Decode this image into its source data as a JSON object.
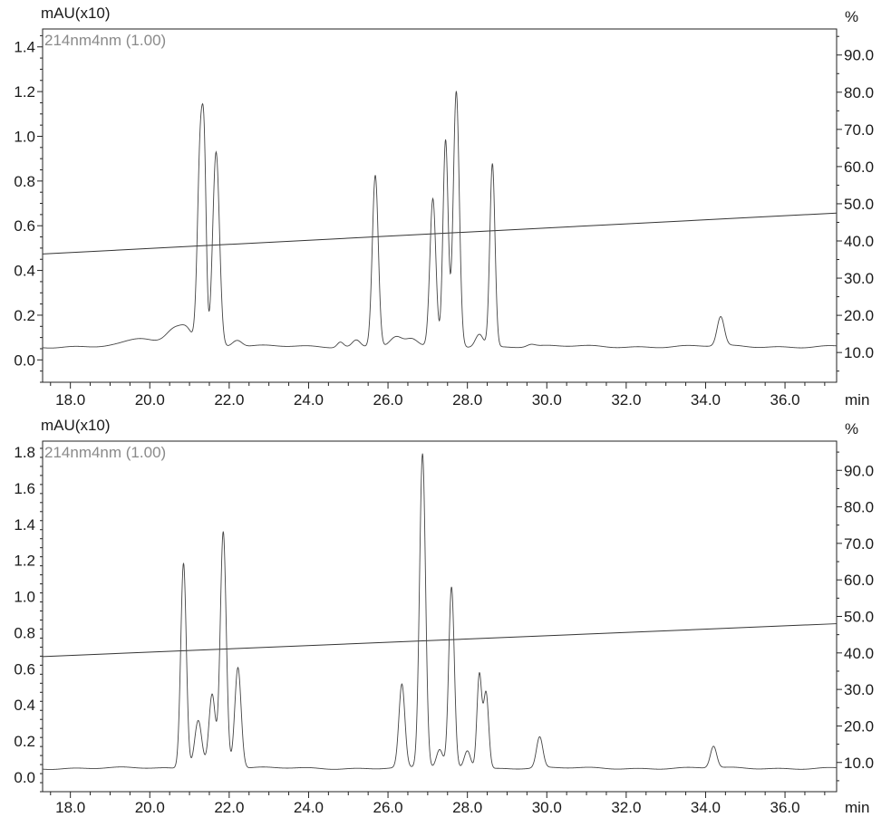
{
  "chart_data": [
    {
      "type": "line",
      "y_axis_label": "mAU(x10)",
      "y2_axis_label": "%",
      "x_axis_label": "min",
      "legend": "214nm4nm (1.00)",
      "xlim": [
        17.3,
        37.3
      ],
      "ylim": [
        -0.1,
        1.48
      ],
      "y2lim": [
        2.0,
        97.0
      ],
      "x_ticks": [
        "18.0",
        "20.0",
        "22.0",
        "24.0",
        "26.0",
        "28.0",
        "30.0",
        "32.0",
        "34.0",
        "36.0"
      ],
      "y_ticks": [
        "0.0",
        "0.2",
        "0.4",
        "0.6",
        "0.8",
        "1.0",
        "1.2",
        "1.4"
      ],
      "y2_ticks": [
        "10.0",
        "20.0",
        "30.0",
        "40.0",
        "50.0",
        "60.0",
        "70.0",
        "80.0",
        "90.0"
      ],
      "baseline": 0.06,
      "peaks": [
        {
          "rt": 19.8,
          "height": 0.035,
          "width": 0.35
        },
        {
          "rt": 20.65,
          "height": 0.08,
          "width": 0.22
        },
        {
          "rt": 20.95,
          "height": 0.06,
          "width": 0.15
        },
        {
          "rt": 21.28,
          "height": 0.94,
          "width": 0.075
        },
        {
          "rt": 21.38,
          "height": 0.55,
          "width": 0.05
        },
        {
          "rt": 21.67,
          "height": 0.87,
          "width": 0.085
        },
        {
          "rt": 22.2,
          "height": 0.03,
          "width": 0.12
        },
        {
          "rt": 24.8,
          "height": 0.025,
          "width": 0.08
        },
        {
          "rt": 25.2,
          "height": 0.03,
          "width": 0.1
        },
        {
          "rt": 25.68,
          "height": 0.77,
          "width": 0.075
        },
        {
          "rt": 26.2,
          "height": 0.04,
          "width": 0.15
        },
        {
          "rt": 26.6,
          "height": 0.03,
          "width": 0.15
        },
        {
          "rt": 27.13,
          "height": 0.66,
          "width": 0.075
        },
        {
          "rt": 27.45,
          "height": 0.92,
          "width": 0.065
        },
        {
          "rt": 27.72,
          "height": 1.14,
          "width": 0.075
        },
        {
          "rt": 28.3,
          "height": 0.06,
          "width": 0.1
        },
        {
          "rt": 28.63,
          "height": 0.82,
          "width": 0.065
        },
        {
          "rt": 29.6,
          "height": 0.01,
          "width": 0.1
        },
        {
          "rt": 34.38,
          "height": 0.13,
          "width": 0.09
        }
      ],
      "gradient_line": {
        "start": [
          17.3,
          36.5
        ],
        "end": [
          37.3,
          47.5
        ]
      },
      "grid": false
    },
    {
      "type": "line",
      "y_axis_label": "mAU(x10)",
      "y2_axis_label": "%",
      "x_axis_label": "min",
      "legend": "214nm4nm (1.00)",
      "xlim": [
        17.3,
        37.3
      ],
      "ylim": [
        -0.08,
        1.86
      ],
      "y2lim": [
        2.0,
        98.0
      ],
      "x_ticks": [
        "18.0",
        "20.0",
        "22.0",
        "24.0",
        "26.0",
        "28.0",
        "30.0",
        "32.0",
        "34.0",
        "36.0"
      ],
      "y_ticks": [
        "0.0",
        "0.2",
        "0.4",
        "0.6",
        "0.8",
        "1.0",
        "1.2",
        "1.4",
        "1.6",
        "1.8"
      ],
      "y2_ticks": [
        "10.0",
        "20.0",
        "30.0",
        "40.0",
        "50.0",
        "60.0",
        "70.0",
        "80.0",
        "90.0"
      ],
      "baseline": 0.05,
      "peaks": [
        {
          "rt": 20.85,
          "height": 1.14,
          "width": 0.07
        },
        {
          "rt": 21.22,
          "height": 0.27,
          "width": 0.09
        },
        {
          "rt": 21.57,
          "height": 0.41,
          "width": 0.08
        },
        {
          "rt": 21.85,
          "height": 1.31,
          "width": 0.075
        },
        {
          "rt": 22.22,
          "height": 0.56,
          "width": 0.08
        },
        {
          "rt": 26.35,
          "height": 0.46,
          "width": 0.075
        },
        {
          "rt": 26.87,
          "height": 1.74,
          "width": 0.075
        },
        {
          "rt": 27.3,
          "height": 0.1,
          "width": 0.08
        },
        {
          "rt": 27.6,
          "height": 1.0,
          "width": 0.07
        },
        {
          "rt": 28.0,
          "height": 0.1,
          "width": 0.08
        },
        {
          "rt": 28.3,
          "height": 0.52,
          "width": 0.06
        },
        {
          "rt": 28.47,
          "height": 0.42,
          "width": 0.065
        },
        {
          "rt": 29.82,
          "height": 0.17,
          "width": 0.08
        },
        {
          "rt": 34.2,
          "height": 0.12,
          "width": 0.08
        }
      ],
      "gradient_line": {
        "start": [
          17.3,
          39.0
        ],
        "end": [
          37.3,
          48.0
        ]
      },
      "grid": false
    }
  ]
}
